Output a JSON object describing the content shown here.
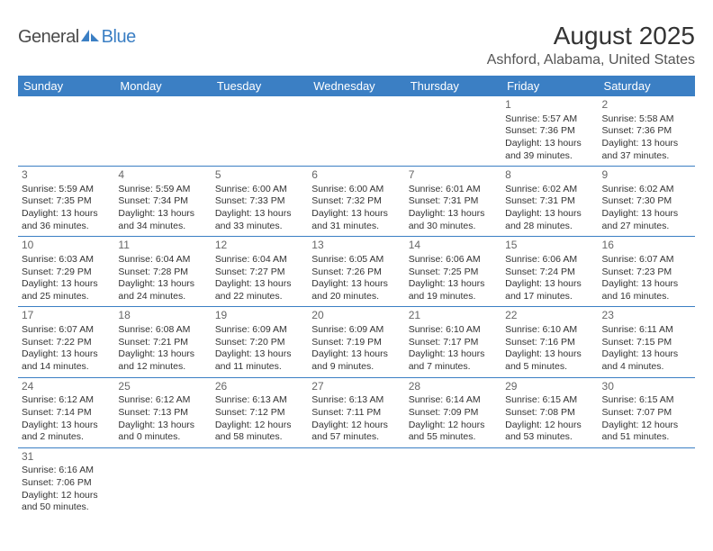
{
  "logo": {
    "text_general": "General",
    "text_blue": "Blue",
    "icon_color": "#3b7fc4"
  },
  "title": "August 2025",
  "location": "Ashford, Alabama, United States",
  "colors": {
    "header_bg": "#3b7fc4",
    "header_text": "#ffffff",
    "row_border": "#3b7fc4",
    "body_text": "#333333",
    "day_number": "#666666",
    "background": "#ffffff"
  },
  "typography": {
    "title_fontsize": 28,
    "location_fontsize": 16,
    "dayheader_fontsize": 13,
    "cell_fontsize": 10.5,
    "daynumber_fontsize": 12
  },
  "day_headers": [
    "Sunday",
    "Monday",
    "Tuesday",
    "Wednesday",
    "Thursday",
    "Friday",
    "Saturday"
  ],
  "weeks": [
    [
      null,
      null,
      null,
      null,
      null,
      {
        "n": "1",
        "sunrise": "Sunrise: 5:57 AM",
        "sunset": "Sunset: 7:36 PM",
        "daylight": "Daylight: 13 hours and 39 minutes."
      },
      {
        "n": "2",
        "sunrise": "Sunrise: 5:58 AM",
        "sunset": "Sunset: 7:36 PM",
        "daylight": "Daylight: 13 hours and 37 minutes."
      }
    ],
    [
      {
        "n": "3",
        "sunrise": "Sunrise: 5:59 AM",
        "sunset": "Sunset: 7:35 PM",
        "daylight": "Daylight: 13 hours and 36 minutes."
      },
      {
        "n": "4",
        "sunrise": "Sunrise: 5:59 AM",
        "sunset": "Sunset: 7:34 PM",
        "daylight": "Daylight: 13 hours and 34 minutes."
      },
      {
        "n": "5",
        "sunrise": "Sunrise: 6:00 AM",
        "sunset": "Sunset: 7:33 PM",
        "daylight": "Daylight: 13 hours and 33 minutes."
      },
      {
        "n": "6",
        "sunrise": "Sunrise: 6:00 AM",
        "sunset": "Sunset: 7:32 PM",
        "daylight": "Daylight: 13 hours and 31 minutes."
      },
      {
        "n": "7",
        "sunrise": "Sunrise: 6:01 AM",
        "sunset": "Sunset: 7:31 PM",
        "daylight": "Daylight: 13 hours and 30 minutes."
      },
      {
        "n": "8",
        "sunrise": "Sunrise: 6:02 AM",
        "sunset": "Sunset: 7:31 PM",
        "daylight": "Daylight: 13 hours and 28 minutes."
      },
      {
        "n": "9",
        "sunrise": "Sunrise: 6:02 AM",
        "sunset": "Sunset: 7:30 PM",
        "daylight": "Daylight: 13 hours and 27 minutes."
      }
    ],
    [
      {
        "n": "10",
        "sunrise": "Sunrise: 6:03 AM",
        "sunset": "Sunset: 7:29 PM",
        "daylight": "Daylight: 13 hours and 25 minutes."
      },
      {
        "n": "11",
        "sunrise": "Sunrise: 6:04 AM",
        "sunset": "Sunset: 7:28 PM",
        "daylight": "Daylight: 13 hours and 24 minutes."
      },
      {
        "n": "12",
        "sunrise": "Sunrise: 6:04 AM",
        "sunset": "Sunset: 7:27 PM",
        "daylight": "Daylight: 13 hours and 22 minutes."
      },
      {
        "n": "13",
        "sunrise": "Sunrise: 6:05 AM",
        "sunset": "Sunset: 7:26 PM",
        "daylight": "Daylight: 13 hours and 20 minutes."
      },
      {
        "n": "14",
        "sunrise": "Sunrise: 6:06 AM",
        "sunset": "Sunset: 7:25 PM",
        "daylight": "Daylight: 13 hours and 19 minutes."
      },
      {
        "n": "15",
        "sunrise": "Sunrise: 6:06 AM",
        "sunset": "Sunset: 7:24 PM",
        "daylight": "Daylight: 13 hours and 17 minutes."
      },
      {
        "n": "16",
        "sunrise": "Sunrise: 6:07 AM",
        "sunset": "Sunset: 7:23 PM",
        "daylight": "Daylight: 13 hours and 16 minutes."
      }
    ],
    [
      {
        "n": "17",
        "sunrise": "Sunrise: 6:07 AM",
        "sunset": "Sunset: 7:22 PM",
        "daylight": "Daylight: 13 hours and 14 minutes."
      },
      {
        "n": "18",
        "sunrise": "Sunrise: 6:08 AM",
        "sunset": "Sunset: 7:21 PM",
        "daylight": "Daylight: 13 hours and 12 minutes."
      },
      {
        "n": "19",
        "sunrise": "Sunrise: 6:09 AM",
        "sunset": "Sunset: 7:20 PM",
        "daylight": "Daylight: 13 hours and 11 minutes."
      },
      {
        "n": "20",
        "sunrise": "Sunrise: 6:09 AM",
        "sunset": "Sunset: 7:19 PM",
        "daylight": "Daylight: 13 hours and 9 minutes."
      },
      {
        "n": "21",
        "sunrise": "Sunrise: 6:10 AM",
        "sunset": "Sunset: 7:17 PM",
        "daylight": "Daylight: 13 hours and 7 minutes."
      },
      {
        "n": "22",
        "sunrise": "Sunrise: 6:10 AM",
        "sunset": "Sunset: 7:16 PM",
        "daylight": "Daylight: 13 hours and 5 minutes."
      },
      {
        "n": "23",
        "sunrise": "Sunrise: 6:11 AM",
        "sunset": "Sunset: 7:15 PM",
        "daylight": "Daylight: 13 hours and 4 minutes."
      }
    ],
    [
      {
        "n": "24",
        "sunrise": "Sunrise: 6:12 AM",
        "sunset": "Sunset: 7:14 PM",
        "daylight": "Daylight: 13 hours and 2 minutes."
      },
      {
        "n": "25",
        "sunrise": "Sunrise: 6:12 AM",
        "sunset": "Sunset: 7:13 PM",
        "daylight": "Daylight: 13 hours and 0 minutes."
      },
      {
        "n": "26",
        "sunrise": "Sunrise: 6:13 AM",
        "sunset": "Sunset: 7:12 PM",
        "daylight": "Daylight: 12 hours and 58 minutes."
      },
      {
        "n": "27",
        "sunrise": "Sunrise: 6:13 AM",
        "sunset": "Sunset: 7:11 PM",
        "daylight": "Daylight: 12 hours and 57 minutes."
      },
      {
        "n": "28",
        "sunrise": "Sunrise: 6:14 AM",
        "sunset": "Sunset: 7:09 PM",
        "daylight": "Daylight: 12 hours and 55 minutes."
      },
      {
        "n": "29",
        "sunrise": "Sunrise: 6:15 AM",
        "sunset": "Sunset: 7:08 PM",
        "daylight": "Daylight: 12 hours and 53 minutes."
      },
      {
        "n": "30",
        "sunrise": "Sunrise: 6:15 AM",
        "sunset": "Sunset: 7:07 PM",
        "daylight": "Daylight: 12 hours and 51 minutes."
      }
    ],
    [
      {
        "n": "31",
        "sunrise": "Sunrise: 6:16 AM",
        "sunset": "Sunset: 7:06 PM",
        "daylight": "Daylight: 12 hours and 50 minutes."
      },
      null,
      null,
      null,
      null,
      null,
      null
    ]
  ]
}
